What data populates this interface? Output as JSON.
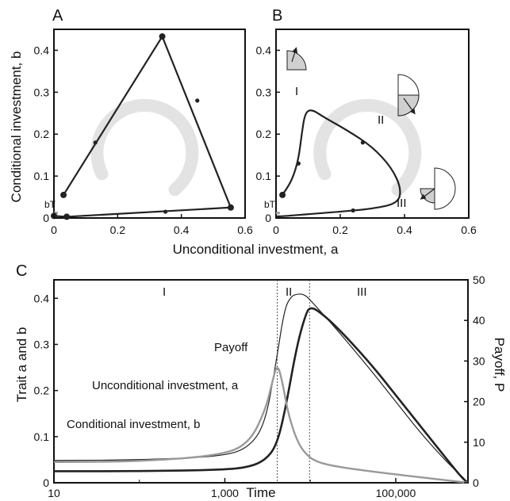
{
  "panels": {
    "A": {
      "letter": "A"
    },
    "B": {
      "letter": "B",
      "regions": [
        "I",
        "II",
        "III"
      ]
    },
    "C": {
      "letter": "C",
      "regions": [
        "I",
        "II",
        "III"
      ]
    }
  },
  "shared": {
    "ab_ylabel": "Conditional investment, b",
    "ab_xlabel": "Unconditional investment, a",
    "bT_label": "bT",
    "ab_xticks": [
      "0",
      "0.2",
      "0.4",
      "0.6"
    ],
    "ab_yticks": [
      "0",
      "0.1",
      "0.2",
      "0.3",
      "0.4"
    ]
  },
  "colors": {
    "dark": "#222222",
    "gray": "#999999",
    "light_gray": "#cccccc"
  },
  "chart_data": [
    {
      "id": "A",
      "type": "line",
      "xlabel": "Unconditional investment, a",
      "ylabel": "Conditional investment, b",
      "xlim": [
        0,
        0.6
      ],
      "ylim": [
        0,
        0.45
      ],
      "series": [
        {
          "points": [
            [
              0.03,
              0.055
            ],
            [
              0.34,
              0.433
            ],
            [
              0.555,
              0.025
            ],
            [
              0.04,
              0.003
            ],
            [
              0.0,
              0.005
            ]
          ],
          "markers": [
            [
              0.03,
              0.055
            ],
            [
              0.34,
              0.433
            ],
            [
              0.555,
              0.025
            ],
            [
              0.04,
              0.003
            ],
            [
              0.0,
              0.005
            ]
          ],
          "arrows": [
            [
              0.13,
              0.18
            ],
            [
              0.45,
              0.28
            ],
            [
              0.35,
              0.015
            ]
          ]
        }
      ]
    },
    {
      "id": "B",
      "type": "line",
      "xlabel": "Unconditional investment, a",
      "ylabel": "Conditional investment, b",
      "xlim": [
        0,
        0.6
      ],
      "ylim": [
        0,
        0.45
      ],
      "series": [
        {
          "points": [
            [
              0.02,
              0.055
            ],
            [
              0.05,
              0.09
            ],
            [
              0.07,
              0.14
            ],
            [
              0.08,
              0.2
            ],
            [
              0.09,
              0.25
            ],
            [
              0.11,
              0.26
            ],
            [
              0.15,
              0.24
            ],
            [
              0.22,
              0.21
            ],
            [
              0.3,
              0.17
            ],
            [
              0.36,
              0.12
            ],
            [
              0.39,
              0.07
            ],
            [
              0.38,
              0.035
            ],
            [
              0.3,
              0.022
            ],
            [
              0.2,
              0.015
            ],
            [
              0.08,
              0.008
            ],
            [
              0.02,
              0.004
            ],
            [
              0.0,
              0.004
            ]
          ],
          "markers": [
            [
              0.02,
              0.055
            ]
          ],
          "arrows": [
            [
              0.07,
              0.13
            ],
            [
              0.27,
              0.18
            ],
            [
              0.24,
              0.018
            ]
          ]
        }
      ]
    },
    {
      "id": "C",
      "type": "line",
      "xlabel": "Time",
      "ylabel": "Trait a and b",
      "y2label": "Payoff, P",
      "xscale": "log",
      "xlim": [
        10,
        700000
      ],
      "ylim": [
        0,
        0.44
      ],
      "y2lim": [
        0,
        50
      ],
      "xticks": [
        "10",
        "1,000",
        "100,000"
      ],
      "yticks": [
        "0",
        "0.1",
        "0.2",
        "0.3",
        "0.4"
      ],
      "y2ticks": [
        "0",
        "10",
        "20",
        "30",
        "40",
        "50"
      ],
      "vlines": [
        4100,
        9800
      ],
      "series": [
        {
          "name": "Payoff",
          "axis": "right",
          "x": [
            10,
            100,
            1000,
            2000,
            3000,
            4000,
            5000,
            6000,
            7000,
            8000,
            9000,
            10000,
            20000,
            50000,
            100000,
            200000,
            400000,
            600000,
            700000
          ],
          "y": [
            5.5,
            5.6,
            6.5,
            9,
            15,
            30,
            43,
            46,
            46.5,
            46.5,
            46,
            45,
            38,
            28,
            20,
            12,
            5,
            1.5,
            0
          ]
        },
        {
          "name": "Unconditional investment, a",
          "axis": "left",
          "x": [
            10,
            100,
            1000,
            2000,
            3000,
            4000,
            5000,
            7000,
            9000,
            10000,
            12000,
            20000,
            50000,
            100000,
            200000,
            400000,
            600000,
            700000
          ],
          "y": [
            0.025,
            0.025,
            0.028,
            0.035,
            0.05,
            0.08,
            0.15,
            0.3,
            0.37,
            0.38,
            0.375,
            0.34,
            0.26,
            0.19,
            0.12,
            0.05,
            0.01,
            0.0
          ]
        },
        {
          "name": "Conditional investment, b",
          "axis": "left",
          "x": [
            10,
            100,
            1000,
            2000,
            3000,
            3500,
            4100,
            4700,
            5500,
            7000,
            9000,
            12000,
            20000,
            50000,
            100000,
            300000,
            700000
          ],
          "y": [
            0.045,
            0.046,
            0.06,
            0.09,
            0.16,
            0.21,
            0.26,
            0.22,
            0.15,
            0.09,
            0.06,
            0.045,
            0.035,
            0.025,
            0.018,
            0.008,
            0.0
          ]
        }
      ],
      "labels": {
        "payoff": "Payoff",
        "a": "Unconditional investment, a",
        "b": "Conditional investment, b",
        "time": "Time",
        "left_axis": "Trait a and b",
        "right_axis": "Payoff, P"
      }
    }
  ]
}
